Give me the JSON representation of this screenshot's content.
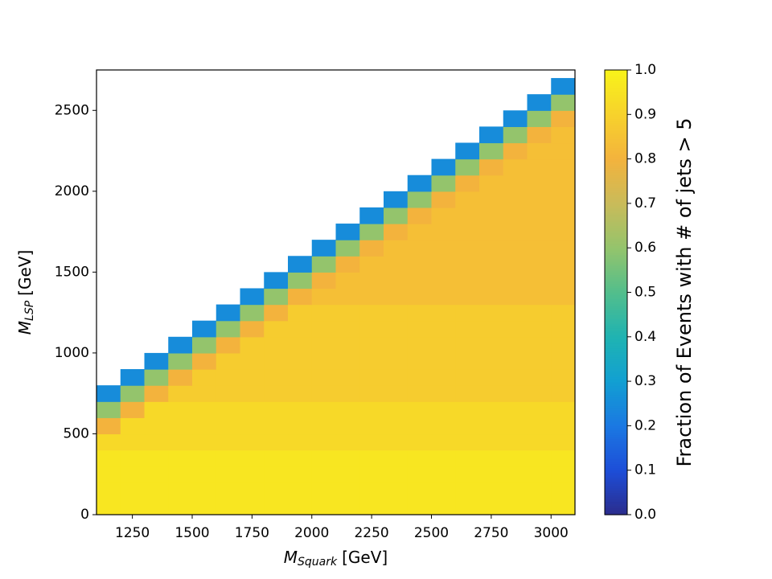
{
  "chart_data": {
    "type": "heatmap",
    "xlabel": {
      "symbol": "M",
      "subscript": "Squark",
      "unit": "[GeV]"
    },
    "ylabel": {
      "symbol": "M",
      "subscript": "LSP",
      "unit": "[GeV]"
    },
    "colorbar_label": "Fraction of Events with # of jets > 5",
    "xlim": [
      1100,
      3100
    ],
    "xticks": [
      1250,
      1500,
      1750,
      2000,
      2250,
      2500,
      2750,
      3000
    ],
    "ylim": [
      0,
      2750
    ],
    "yticks": [
      0,
      500,
      1000,
      1500,
      2000,
      2500
    ],
    "zlim": [
      0,
      1
    ],
    "zticks": [
      {
        "value": 0,
        "label": "0.0"
      },
      {
        "value": 0.1,
        "label": "0.1"
      },
      {
        "value": 0.2,
        "label": "0.2"
      },
      {
        "value": 0.3,
        "label": "0.3"
      },
      {
        "value": 0.4,
        "label": "0.4"
      },
      {
        "value": 0.5,
        "label": "0.5"
      },
      {
        "value": 0.6,
        "label": "0.6"
      },
      {
        "value": 0.7,
        "label": "0.7"
      },
      {
        "value": 0.8,
        "label": "0.8"
      },
      {
        "value": 0.9,
        "label": "0.9"
      },
      {
        "value": 1,
        "label": "1.0"
      }
    ],
    "colormap": [
      "#2b2c8c",
      "#1d4ed8",
      "#1b78e2",
      "#129fd2",
      "#1fb3b2",
      "#52be8c",
      "#94c46c",
      "#c9bb5a",
      "#f3b33d",
      "#f7d22c",
      "#f8f31a"
    ],
    "x": [
      1150,
      1250,
      1350,
      1450,
      1550,
      1650,
      1750,
      1850,
      1950,
      2050,
      2150,
      2250,
      2350,
      2450,
      2550,
      2650,
      2750,
      2850,
      2950,
      3050
    ],
    "y": [
      50,
      150,
      250,
      350,
      450,
      550,
      650,
      750,
      850,
      950,
      1050,
      1150,
      1250,
      1350,
      1450,
      1550,
      1650,
      1750,
      1850,
      1950,
      2050,
      2150,
      2250,
      2350,
      2450,
      2550,
      2650
    ],
    "z": [
      [
        0.96,
        0.96,
        0.96,
        0.96,
        0.96,
        0.96,
        0.96,
        0.96,
        0.96,
        0.96,
        0.96,
        0.96,
        0.96,
        0.96,
        0.96,
        0.96,
        0.96,
        0.96,
        0.96,
        0.96
      ],
      [
        0.96,
        0.96,
        0.96,
        0.96,
        0.96,
        0.96,
        0.96,
        0.96,
        0.96,
        0.96,
        0.96,
        0.96,
        0.96,
        0.96,
        0.96,
        0.96,
        0.96,
        0.96,
        0.96,
        0.96
      ],
      [
        0.96,
        0.96,
        0.96,
        0.96,
        0.96,
        0.96,
        0.96,
        0.96,
        0.96,
        0.96,
        0.96,
        0.96,
        0.96,
        0.96,
        0.96,
        0.96,
        0.96,
        0.96,
        0.96,
        0.96
      ],
      [
        0.96,
        0.96,
        0.96,
        0.96,
        0.96,
        0.96,
        0.96,
        0.96,
        0.96,
        0.96,
        0.96,
        0.96,
        0.96,
        0.96,
        0.96,
        0.96,
        0.96,
        0.96,
        0.96,
        0.96
      ],
      [
        0.92,
        0.92,
        0.92,
        0.92,
        0.92,
        0.92,
        0.92,
        0.92,
        0.92,
        0.92,
        0.92,
        0.92,
        0.92,
        0.92,
        0.92,
        0.92,
        0.92,
        0.92,
        0.92,
        0.92
      ],
      [
        0.8,
        0.92,
        0.92,
        0.92,
        0.92,
        0.92,
        0.92,
        0.92,
        0.92,
        0.92,
        0.92,
        0.92,
        0.92,
        0.92,
        0.92,
        0.92,
        0.92,
        0.92,
        0.92,
        0.92
      ],
      [
        0.6,
        0.8,
        0.92,
        0.92,
        0.92,
        0.92,
        0.92,
        0.92,
        0.92,
        0.92,
        0.92,
        0.92,
        0.92,
        0.92,
        0.92,
        0.92,
        0.92,
        0.92,
        0.92,
        0.92
      ],
      [
        0.25,
        0.6,
        0.8,
        0.88,
        0.88,
        0.88,
        0.88,
        0.88,
        0.88,
        0.88,
        0.88,
        0.88,
        0.88,
        0.88,
        0.88,
        0.88,
        0.88,
        0.88,
        0.88,
        0.88
      ],
      [
        null,
        0.25,
        0.6,
        0.8,
        0.88,
        0.88,
        0.88,
        0.88,
        0.88,
        0.88,
        0.88,
        0.88,
        0.88,
        0.88,
        0.88,
        0.88,
        0.88,
        0.88,
        0.88,
        0.88
      ],
      [
        null,
        null,
        0.25,
        0.6,
        0.8,
        0.88,
        0.88,
        0.88,
        0.88,
        0.88,
        0.88,
        0.88,
        0.88,
        0.88,
        0.88,
        0.88,
        0.88,
        0.88,
        0.88,
        0.88
      ],
      [
        null,
        null,
        null,
        0.25,
        0.6,
        0.8,
        0.88,
        0.88,
        0.88,
        0.88,
        0.88,
        0.88,
        0.88,
        0.88,
        0.88,
        0.88,
        0.88,
        0.88,
        0.88,
        0.88
      ],
      [
        null,
        null,
        null,
        null,
        0.25,
        0.6,
        0.8,
        0.88,
        0.88,
        0.88,
        0.88,
        0.88,
        0.88,
        0.88,
        0.88,
        0.88,
        0.88,
        0.88,
        0.88,
        0.88
      ],
      [
        null,
        null,
        null,
        null,
        null,
        0.25,
        0.6,
        0.8,
        0.88,
        0.88,
        0.88,
        0.88,
        0.88,
        0.88,
        0.88,
        0.88,
        0.88,
        0.88,
        0.88,
        0.88
      ],
      [
        null,
        null,
        null,
        null,
        null,
        null,
        0.25,
        0.6,
        0.8,
        0.84,
        0.84,
        0.84,
        0.84,
        0.84,
        0.84,
        0.84,
        0.84,
        0.84,
        0.84,
        0.84
      ],
      [
        null,
        null,
        null,
        null,
        null,
        null,
        null,
        0.25,
        0.6,
        0.8,
        0.84,
        0.84,
        0.84,
        0.84,
        0.84,
        0.84,
        0.84,
        0.84,
        0.84,
        0.84
      ],
      [
        null,
        null,
        null,
        null,
        null,
        null,
        null,
        null,
        0.25,
        0.6,
        0.8,
        0.84,
        0.84,
        0.84,
        0.84,
        0.84,
        0.84,
        0.84,
        0.84,
        0.84
      ],
      [
        null,
        null,
        null,
        null,
        null,
        null,
        null,
        null,
        null,
        0.25,
        0.6,
        0.8,
        0.84,
        0.84,
        0.84,
        0.84,
        0.84,
        0.84,
        0.84,
        0.84
      ],
      [
        null,
        null,
        null,
        null,
        null,
        null,
        null,
        null,
        null,
        null,
        0.25,
        0.6,
        0.8,
        0.84,
        0.84,
        0.84,
        0.84,
        0.84,
        0.84,
        0.84
      ],
      [
        null,
        null,
        null,
        null,
        null,
        null,
        null,
        null,
        null,
        null,
        null,
        0.25,
        0.6,
        0.8,
        0.84,
        0.84,
        0.84,
        0.84,
        0.84,
        0.84
      ],
      [
        null,
        null,
        null,
        null,
        null,
        null,
        null,
        null,
        null,
        null,
        null,
        null,
        0.25,
        0.6,
        0.8,
        0.84,
        0.84,
        0.84,
        0.84,
        0.84
      ],
      [
        null,
        null,
        null,
        null,
        null,
        null,
        null,
        null,
        null,
        null,
        null,
        null,
        null,
        0.25,
        0.6,
        0.8,
        0.84,
        0.84,
        0.84,
        0.84
      ],
      [
        null,
        null,
        null,
        null,
        null,
        null,
        null,
        null,
        null,
        null,
        null,
        null,
        null,
        null,
        0.25,
        0.6,
        0.8,
        0.84,
        0.84,
        0.84
      ],
      [
        null,
        null,
        null,
        null,
        null,
        null,
        null,
        null,
        null,
        null,
        null,
        null,
        null,
        null,
        null,
        0.25,
        0.6,
        0.8,
        0.84,
        0.84
      ],
      [
        null,
        null,
        null,
        null,
        null,
        null,
        null,
        null,
        null,
        null,
        null,
        null,
        null,
        null,
        null,
        null,
        0.25,
        0.6,
        0.8,
        0.84
      ],
      [
        null,
        null,
        null,
        null,
        null,
        null,
        null,
        null,
        null,
        null,
        null,
        null,
        null,
        null,
        null,
        null,
        null,
        0.25,
        0.6,
        0.8
      ],
      [
        null,
        null,
        null,
        null,
        null,
        null,
        null,
        null,
        null,
        null,
        null,
        null,
        null,
        null,
        null,
        null,
        null,
        null,
        0.25,
        0.6
      ],
      [
        null,
        null,
        null,
        null,
        null,
        null,
        null,
        null,
        null,
        null,
        null,
        null,
        null,
        null,
        null,
        null,
        null,
        null,
        null,
        0.25
      ]
    ]
  }
}
